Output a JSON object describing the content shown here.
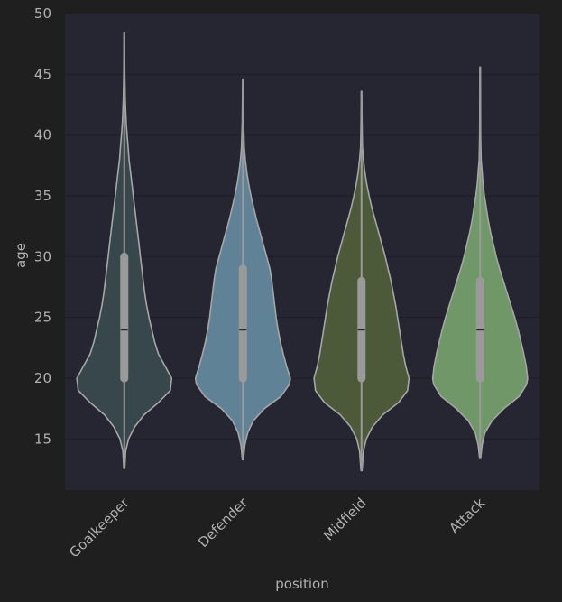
{
  "chart_data": {
    "type": "violin",
    "title": "",
    "xlabel": "position",
    "ylabel": "age",
    "ylim": [
      10.8,
      50
    ],
    "yticks": [
      15,
      20,
      25,
      30,
      35,
      40,
      45,
      50
    ],
    "grid": true,
    "categories": [
      "Goalkeeper",
      "Defender",
      "Midfield",
      "Attack"
    ],
    "colors": [
      "#37474b",
      "#5f8296",
      "#4d5a3a",
      "#6f9767"
    ],
    "series": [
      {
        "name": "Goalkeeper",
        "min": 12.6,
        "max": 48.4,
        "q1": 20,
        "median": 24,
        "q3": 30,
        "profile": [
          [
            12.6,
            0.01
          ],
          [
            14,
            0.03
          ],
          [
            15,
            0.09
          ],
          [
            16,
            0.22
          ],
          [
            17,
            0.42
          ],
          [
            18,
            0.72
          ],
          [
            19,
            0.97
          ],
          [
            20,
            1.0
          ],
          [
            21,
            0.86
          ],
          [
            22,
            0.72
          ],
          [
            23,
            0.64
          ],
          [
            24,
            0.58
          ],
          [
            25,
            0.52
          ],
          [
            26,
            0.47
          ],
          [
            27,
            0.43
          ],
          [
            28,
            0.4
          ],
          [
            29,
            0.37
          ],
          [
            30,
            0.34
          ],
          [
            31,
            0.31
          ],
          [
            32,
            0.28
          ],
          [
            33,
            0.25
          ],
          [
            34,
            0.22
          ],
          [
            35,
            0.19
          ],
          [
            36,
            0.16
          ],
          [
            37,
            0.13
          ],
          [
            38,
            0.1
          ],
          [
            39,
            0.08
          ],
          [
            40,
            0.06
          ],
          [
            41,
            0.04
          ],
          [
            42,
            0.03
          ],
          [
            43,
            0.02
          ],
          [
            45,
            0.01
          ],
          [
            48.4,
            0.005
          ]
        ]
      },
      {
        "name": "Defender",
        "min": 13.3,
        "max": 44.6,
        "q1": 20,
        "median": 24,
        "q3": 29,
        "profile": [
          [
            13.3,
            0.01
          ],
          [
            14.5,
            0.04
          ],
          [
            15.5,
            0.1
          ],
          [
            16.5,
            0.22
          ],
          [
            17.5,
            0.45
          ],
          [
            18.5,
            0.8
          ],
          [
            19.5,
            0.98
          ],
          [
            20,
            1.0
          ],
          [
            21,
            0.92
          ],
          [
            22,
            0.85
          ],
          [
            23,
            0.79
          ],
          [
            24,
            0.74
          ],
          [
            25,
            0.7
          ],
          [
            26,
            0.67
          ],
          [
            27,
            0.64
          ],
          [
            28,
            0.61
          ],
          [
            29,
            0.57
          ],
          [
            30,
            0.5
          ],
          [
            31,
            0.43
          ],
          [
            32,
            0.36
          ],
          [
            33,
            0.29
          ],
          [
            34,
            0.23
          ],
          [
            35,
            0.17
          ],
          [
            36,
            0.12
          ],
          [
            37,
            0.08
          ],
          [
            38,
            0.05
          ],
          [
            39,
            0.03
          ],
          [
            41,
            0.015
          ],
          [
            44.6,
            0.005
          ]
        ]
      },
      {
        "name": "Midfield",
        "min": 12.4,
        "max": 43.6,
        "q1": 20,
        "median": 24,
        "q3": 28,
        "profile": [
          [
            12.4,
            0.01
          ],
          [
            14,
            0.04
          ],
          [
            15,
            0.1
          ],
          [
            16,
            0.23
          ],
          [
            17,
            0.45
          ],
          [
            18,
            0.78
          ],
          [
            19,
            0.97
          ],
          [
            20,
            1.0
          ],
          [
            21,
            0.93
          ],
          [
            22,
            0.88
          ],
          [
            23,
            0.84
          ],
          [
            24,
            0.8
          ],
          [
            25,
            0.76
          ],
          [
            26,
            0.72
          ],
          [
            27,
            0.67
          ],
          [
            28,
            0.62
          ],
          [
            29,
            0.56
          ],
          [
            30,
            0.5
          ],
          [
            31,
            0.43
          ],
          [
            32,
            0.36
          ],
          [
            33,
            0.29
          ],
          [
            34,
            0.22
          ],
          [
            35,
            0.16
          ],
          [
            36,
            0.11
          ],
          [
            37,
            0.07
          ],
          [
            38,
            0.04
          ],
          [
            39,
            0.02
          ],
          [
            41,
            0.01
          ],
          [
            43.6,
            0.005
          ]
        ]
      },
      {
        "name": "Attack",
        "min": 13.4,
        "max": 45.6,
        "q1": 20,
        "median": 24,
        "q3": 28,
        "profile": [
          [
            13.4,
            0.01
          ],
          [
            14.5,
            0.04
          ],
          [
            15.5,
            0.1
          ],
          [
            16.5,
            0.25
          ],
          [
            17.5,
            0.5
          ],
          [
            18.5,
            0.82
          ],
          [
            19.5,
            0.98
          ],
          [
            20,
            1.0
          ],
          [
            21,
            0.97
          ],
          [
            22,
            0.92
          ],
          [
            23,
            0.86
          ],
          [
            24,
            0.8
          ],
          [
            25,
            0.73
          ],
          [
            26,
            0.65
          ],
          [
            27,
            0.57
          ],
          [
            28,
            0.49
          ],
          [
            29,
            0.41
          ],
          [
            30,
            0.34
          ],
          [
            31,
            0.28
          ],
          [
            32,
            0.22
          ],
          [
            33,
            0.17
          ],
          [
            34,
            0.13
          ],
          [
            35,
            0.09
          ],
          [
            36,
            0.06
          ],
          [
            37,
            0.04
          ],
          [
            38,
            0.02
          ],
          [
            40,
            0.01
          ],
          [
            45.6,
            0.005
          ]
        ]
      }
    ]
  }
}
